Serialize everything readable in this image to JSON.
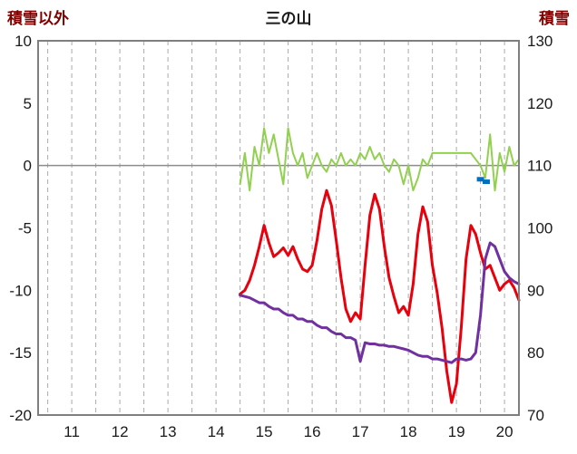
{
  "chart_data": {
    "type": "line",
    "title": "三の山",
    "left_axis": {
      "label": "積雪以外",
      "min": -20,
      "max": 10,
      "ticks": [
        10,
        5,
        0,
        -5,
        -10,
        -15,
        -20
      ]
    },
    "right_axis": {
      "label": "積雪",
      "min": 70,
      "max": 130,
      "ticks": [
        130,
        120,
        110,
        100,
        90,
        80,
        70
      ]
    },
    "x_axis": {
      "min": 10.3,
      "max": 20.3,
      "ticks": [
        11,
        12,
        13,
        14,
        15,
        16,
        17,
        18,
        19,
        20
      ],
      "gridline_step": 0.5
    },
    "grid": {
      "gridline_color": "#ababab",
      "zero_line_color": "#8c8c8c",
      "frame_color": "#7f7f7f",
      "background": "#ffffff"
    },
    "series": [
      {
        "name": "green-line",
        "axis": "left",
        "color": "#92d050",
        "width": 2,
        "x_start": 14.5,
        "x_step": 0.1,
        "values": [
          -1.5,
          1.0,
          -2.0,
          1.5,
          0.0,
          3.0,
          1.0,
          2.5,
          0.5,
          -1.5,
          3.0,
          1.0,
          0.0,
          1.0,
          -1.0,
          0.0,
          1.0,
          0.0,
          -0.5,
          0.5,
          0.0,
          1.0,
          0.0,
          0.5,
          0.0,
          1.0,
          0.5,
          1.5,
          0.5,
          1.0,
          0.0,
          -0.5,
          0.5,
          0.0,
          -1.5,
          0.0,
          -2.0,
          -1.0,
          0.5,
          0.0,
          1.0,
          1.0,
          1.0,
          1.0,
          1.0,
          1.0,
          1.0,
          1.0,
          1.0,
          0.5,
          0.0,
          -1.0,
          2.5,
          -2.0,
          1.0,
          -0.5,
          1.5,
          0.0,
          0.5
        ]
      },
      {
        "name": "red-line",
        "axis": "left",
        "color": "#e8000d",
        "width": 3,
        "x_start": 14.5,
        "x_step": 0.1,
        "values": [
          -10.3,
          -10.0,
          -9.2,
          -8.0,
          -6.5,
          -4.8,
          -6.2,
          -7.3,
          -7.0,
          -6.6,
          -7.2,
          -6.5,
          -7.5,
          -8.3,
          -8.5,
          -8.0,
          -6.0,
          -3.5,
          -2.0,
          -3.2,
          -6.0,
          -9.0,
          -11.5,
          -12.5,
          -11.8,
          -12.3,
          -8.0,
          -4.0,
          -2.3,
          -3.5,
          -6.5,
          -9.0,
          -10.5,
          -11.8,
          -11.3,
          -12.0,
          -9.5,
          -5.5,
          -3.3,
          -4.5,
          -8.0,
          -10.2,
          -13.0,
          -16.5,
          -19.0,
          -17.5,
          -13.0,
          -7.5,
          -4.8,
          -5.5,
          -7.0,
          -8.3,
          -8.0,
          -9.0,
          -10.0,
          -9.5,
          -9.2,
          -9.8,
          -10.8
        ]
      },
      {
        "name": "purple-line",
        "axis": "right",
        "color": "#7030a0",
        "width": 3,
        "x_start": 14.5,
        "x_step": 0.1,
        "values": [
          89.2,
          89,
          88.8,
          88.4,
          88,
          88,
          87.4,
          87,
          87,
          86.4,
          86,
          86,
          85.4,
          85.4,
          85,
          85,
          84.4,
          84,
          84,
          83.4,
          83,
          83,
          82.4,
          82.4,
          82,
          78.6,
          81.6,
          81.4,
          81.4,
          81.2,
          81.2,
          81,
          81,
          80.8,
          80.6,
          80.4,
          80,
          79.6,
          79.4,
          79.4,
          79,
          79,
          78.8,
          78.6,
          78.4,
          79,
          79,
          78.8,
          79,
          80,
          86,
          95,
          97.6,
          97,
          95,
          93,
          92,
          91.4,
          91
        ]
      },
      {
        "name": "blue-marks",
        "axis": "left",
        "color": "#0070c0",
        "type": "marks",
        "points": [
          {
            "x": 19.5,
            "y": -1.1
          },
          {
            "x": 19.62,
            "y": -1.3
          }
        ]
      }
    ]
  }
}
